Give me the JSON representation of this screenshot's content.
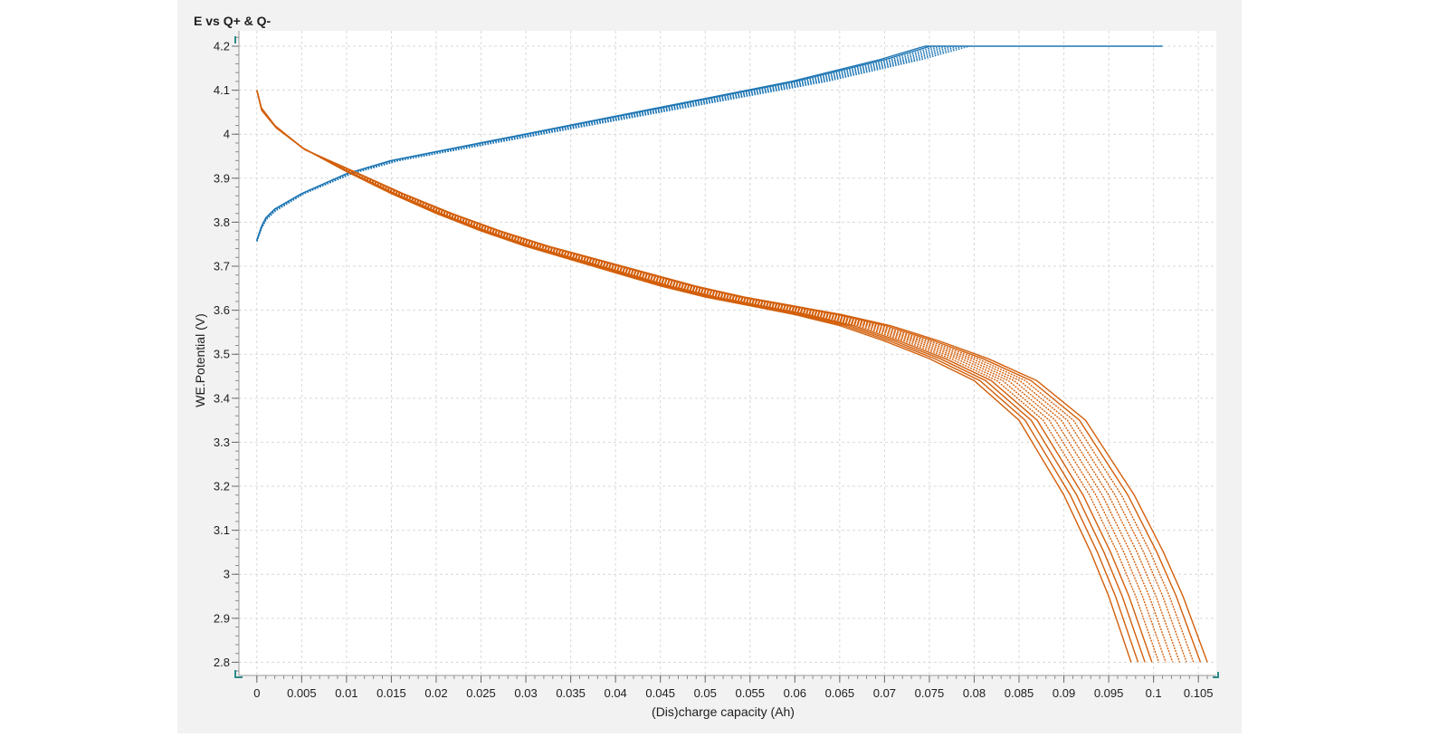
{
  "chart_data": {
    "type": "line",
    "title": "E vs Q+ & Q-",
    "xlabel": "(Dis)charge capacity (Ah)",
    "ylabel": "WE.Potential (V)",
    "xlim": [
      -0.002,
      0.107
    ],
    "ylim": [
      2.77,
      4.235
    ],
    "x_ticks": [
      "0",
      "0.005",
      "0.01",
      "0.015",
      "0.02",
      "0.025",
      "0.03",
      "0.035",
      "0.04",
      "0.045",
      "0.05",
      "0.055",
      "0.06",
      "0.065",
      "0.07",
      "0.075",
      "0.08",
      "0.085",
      "0.09",
      "0.095",
      "0.1",
      "0.105"
    ],
    "y_ticks": [
      "2.8",
      "2.9",
      "3",
      "3.1",
      "3.2",
      "3.3",
      "3.4",
      "3.5",
      "3.6",
      "3.7",
      "3.8",
      "3.9",
      "4",
      "4.1",
      "4.2"
    ],
    "grid": true,
    "colors": {
      "charge": "#1f77b4",
      "discharge": "#d35f0b",
      "plot_bg": "#ffffff",
      "panel_bg": "#f2f2f2",
      "grid": "#d9d9d9"
    },
    "charge_series": {
      "cycles": 9,
      "cv_plateau_V": 4.2,
      "cv_end_Ah": 0.101,
      "cc_end_Ah_range": [
        0.0745,
        0.0795
      ],
      "points": [
        [
          0,
          3.76
        ],
        [
          0.0005,
          3.79
        ],
        [
          0.001,
          3.81
        ],
        [
          0.002,
          3.83
        ],
        [
          0.005,
          3.865
        ],
        [
          0.01,
          3.91
        ],
        [
          0.015,
          3.94
        ],
        [
          0.02,
          3.96
        ],
        [
          0.025,
          3.98
        ],
        [
          0.03,
          4.0
        ],
        [
          0.035,
          4.02
        ],
        [
          0.04,
          4.04
        ],
        [
          0.045,
          4.06
        ],
        [
          0.05,
          4.08
        ],
        [
          0.055,
          4.1
        ],
        [
          0.06,
          4.12
        ],
        [
          0.065,
          4.145
        ],
        [
          0.07,
          4.17
        ],
        [
          0.075,
          4.2
        ]
      ]
    },
    "discharge_series": {
      "cycles": 12,
      "end_V": 2.8,
      "end_Ah_range": [
        0.0975,
        0.106
      ],
      "points": [
        [
          0,
          4.1
        ],
        [
          0.0005,
          4.06
        ],
        [
          0.002,
          4.02
        ],
        [
          0.005,
          3.97
        ],
        [
          0.01,
          3.915
        ],
        [
          0.015,
          3.865
        ],
        [
          0.02,
          3.82
        ],
        [
          0.025,
          3.78
        ],
        [
          0.03,
          3.745
        ],
        [
          0.035,
          3.715
        ],
        [
          0.04,
          3.685
        ],
        [
          0.045,
          3.655
        ],
        [
          0.05,
          3.63
        ],
        [
          0.055,
          3.61
        ],
        [
          0.06,
          3.59
        ],
        [
          0.065,
          3.565
        ],
        [
          0.07,
          3.53
        ],
        [
          0.075,
          3.49
        ],
        [
          0.08,
          3.44
        ],
        [
          0.085,
          3.35
        ],
        [
          0.09,
          3.18
        ],
        [
          0.093,
          3.05
        ],
        [
          0.095,
          2.95
        ],
        [
          0.0975,
          2.8
        ]
      ]
    }
  }
}
